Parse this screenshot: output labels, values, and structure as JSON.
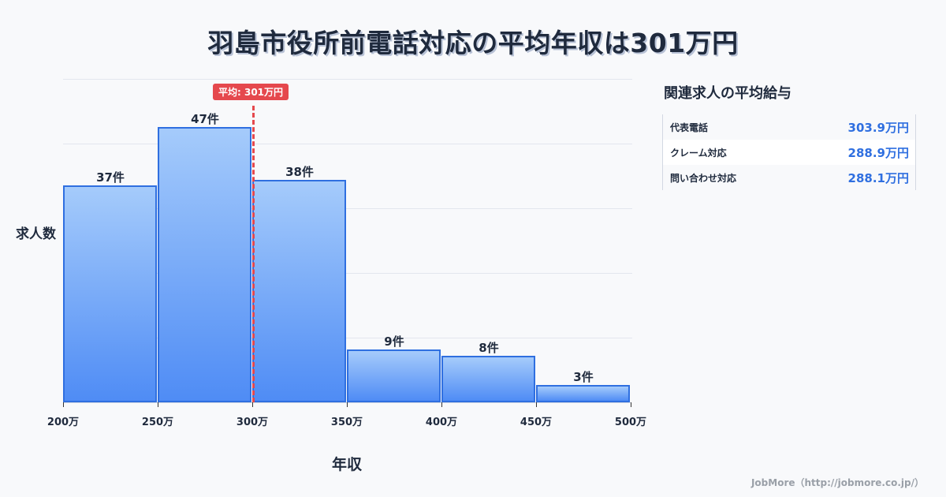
{
  "title": "羽島市役所前電話対応の平均年収は301万円",
  "chart_data": {
    "type": "bar",
    "title": "羽島市役所前電話対応の平均年収は301万円",
    "xlabel": "年収",
    "ylabel": "求人数",
    "bins": [
      [
        200,
        250
      ],
      [
        250,
        300
      ],
      [
        300,
        350
      ],
      [
        350,
        400
      ],
      [
        400,
        450
      ],
      [
        450,
        500
      ]
    ],
    "categories": [
      "200-250万",
      "250-300万",
      "300-350万",
      "350-400万",
      "400-450万",
      "450-500万"
    ],
    "values": [
      37,
      47,
      38,
      9,
      8,
      3
    ],
    "value_labels": [
      "37件",
      "47件",
      "38件",
      "9件",
      "8件",
      "3件"
    ],
    "x_ticks": [
      "200万",
      "250万",
      "300万",
      "350万",
      "400万",
      "450万",
      "500万"
    ],
    "xlim": [
      200,
      500
    ],
    "ylim": [
      0,
      55
    ],
    "grid": true,
    "annotations": [
      {
        "type": "vline",
        "x": 301,
        "label": "平均: 301万円",
        "color": "#e5484d"
      }
    ],
    "bar_color": "#4f8cf5"
  },
  "sidebar": {
    "title": "関連求人の平均給与",
    "rows": [
      {
        "name": "代表電話",
        "value": "303.9万円"
      },
      {
        "name": "クレーム対応",
        "value": "288.9万円"
      },
      {
        "name": "問い合わせ対応",
        "value": "288.1万円"
      }
    ]
  },
  "footer": "JobMore（http://jobmore.co.jp/）"
}
